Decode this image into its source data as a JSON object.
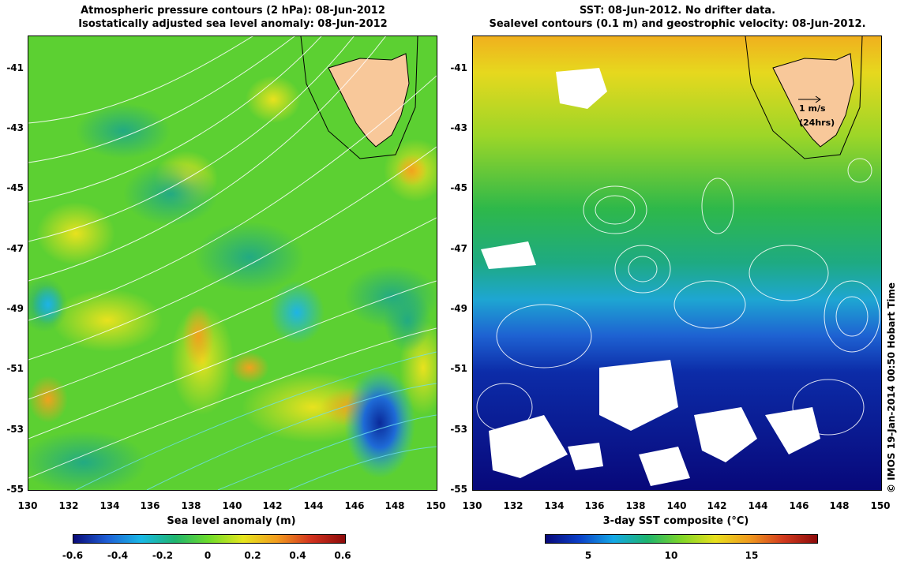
{
  "left_panel": {
    "title_line1": "Atmospheric pressure contours (2 hPa): 08-Jun-2012",
    "title_line2": "Isostatically adjusted sea level anomaly: 08-Jun-2012",
    "colorbar_label": "Sea level anomaly (m)",
    "colorbar_ticks": [
      "-0.6",
      "-0.4",
      "-0.2",
      "0",
      "0.2",
      "0.4",
      "0.6"
    ],
    "colorbar_colors": [
      "#0a0a78",
      "#1e5fd6",
      "#19b9e6",
      "#1fb56e",
      "#6fdc2a",
      "#e6e61e",
      "#f29b1e",
      "#d2321e",
      "#8c0a0a"
    ]
  },
  "right_panel": {
    "title_line1": "SST: 08-Jun-2012. No drifter data.",
    "title_line2": "Sealevel contours (0.1 m) and geostrophic velocity: 08-Jun-2012.",
    "colorbar_label": "3-day SST composite (°C)",
    "colorbar_ticks": [
      "5",
      "10",
      "15"
    ],
    "colorbar_colors": [
      "#08087a",
      "#0b40c8",
      "#14a8e6",
      "#1db46e",
      "#7fd628",
      "#e8e01e",
      "#f09a1e",
      "#d23a1e",
      "#8c0a0a"
    ],
    "velocity_scale_label": "1 m/s",
    "velocity_scale_sub": "(24hrs)"
  },
  "axes": {
    "y_ticks": [
      "-41",
      "-43",
      "-45",
      "-47",
      "-49",
      "-51",
      "-53",
      "-55"
    ],
    "x_ticks": [
      "130",
      "132",
      "134",
      "136",
      "138",
      "140",
      "142",
      "144",
      "146",
      "148",
      "150"
    ]
  },
  "map_extent": {
    "lon_range": [
      130,
      150
    ],
    "lat_range": [
      -55,
      -40
    ]
  },
  "credit": "© IMOS 19-Jan-2014 00:50 Hobart Time",
  "land_color": "#f8c89a"
}
